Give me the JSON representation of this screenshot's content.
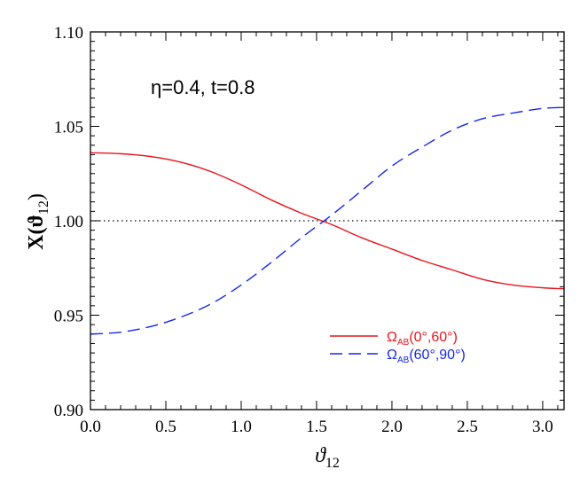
{
  "chart_data": {
    "type": "line",
    "xlabel": "ϑ",
    "xlabel_sub": "12",
    "ylabel": "X(ϑ",
    "ylabel_sub": "12",
    "ylabel_close": ")",
    "xlim": [
      0,
      3.14159
    ],
    "ylim": [
      0.9,
      1.1
    ],
    "xticks": [
      0,
      0.5,
      1.0,
      1.5,
      2.0,
      2.5,
      3.0
    ],
    "xtick_labels": [
      "0.0",
      "0.5",
      "1.0",
      "1.5",
      "2.0",
      "2.5",
      "3.0"
    ],
    "yticks": [
      0.9,
      0.95,
      1.0,
      1.05,
      1.1
    ],
    "ytick_labels": [
      "0.90",
      "0.95",
      "1.00",
      "1.05",
      "1.10"
    ],
    "annotation": "η=0.4,  t=0.8",
    "reference_line": 1.0,
    "grid": false,
    "legend_position": "lower-right",
    "series": [
      {
        "name": "Ω",
        "name_sub": "AB",
        "name_suffix": "(0°,60°)",
        "color": "#e8141c",
        "style": "solid",
        "x": [
          0.0,
          0.2,
          0.4,
          0.6,
          0.8,
          1.0,
          1.2,
          1.4,
          1.6,
          1.8,
          2.0,
          2.2,
          2.4,
          2.6,
          2.8,
          3.0,
          3.14159
        ],
        "y": [
          1.036,
          1.0355,
          1.034,
          1.031,
          1.026,
          1.019,
          1.011,
          1.004,
          0.998,
          0.991,
          0.985,
          0.979,
          0.974,
          0.969,
          0.966,
          0.9645,
          0.964
        ]
      },
      {
        "name": "Ω",
        "name_sub": "AB",
        "name_suffix": "(60°,90°)",
        "color": "#1428e8",
        "style": "dashed",
        "x": [
          0.0,
          0.2,
          0.4,
          0.6,
          0.8,
          1.0,
          1.2,
          1.4,
          1.6,
          1.8,
          2.0,
          2.2,
          2.4,
          2.6,
          2.8,
          3.0,
          3.14159
        ],
        "y": [
          0.94,
          0.941,
          0.944,
          0.949,
          0.956,
          0.966,
          0.978,
          0.991,
          1.003,
          1.016,
          1.029,
          1.039,
          1.048,
          1.054,
          1.057,
          1.0595,
          1.06
        ]
      }
    ]
  }
}
